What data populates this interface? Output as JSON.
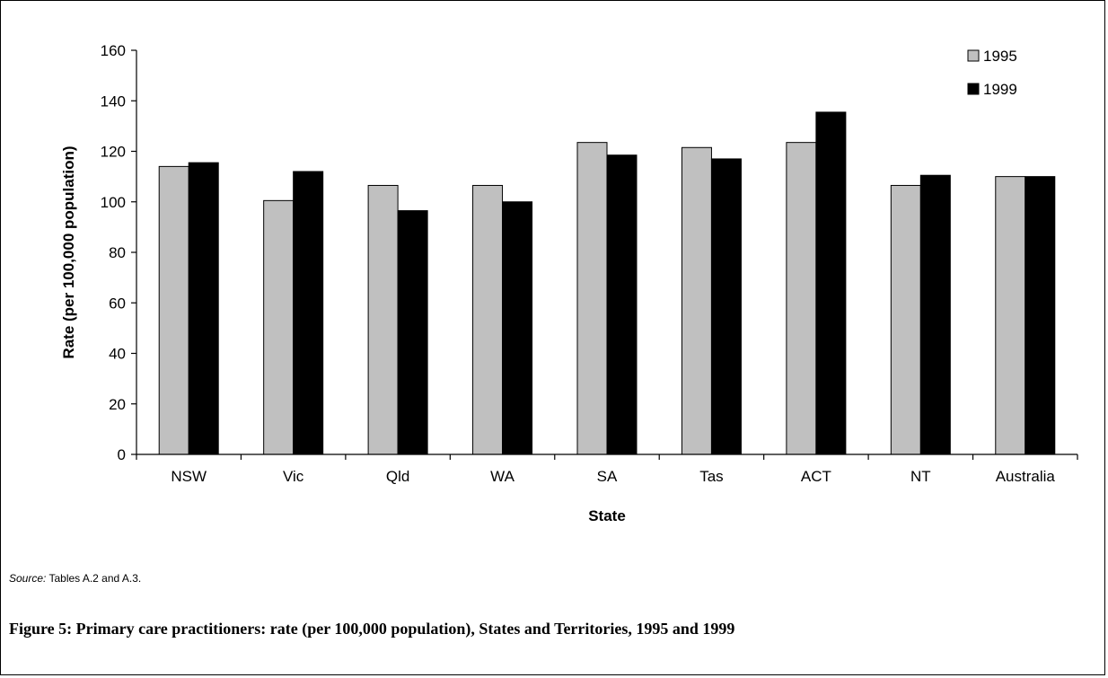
{
  "chart_data": {
    "type": "bar",
    "categories": [
      "NSW",
      "Vic",
      "Qld",
      "WA",
      "SA",
      "Tas",
      "ACT",
      "NT",
      "Australia"
    ],
    "series": [
      {
        "name": "1995",
        "color": "#c0c0c0",
        "values": [
          114,
          100.5,
          106.5,
          106.5,
          123.5,
          121.5,
          123.5,
          106.5,
          110
        ]
      },
      {
        "name": "1999",
        "color": "#000000",
        "values": [
          115.5,
          112,
          96.5,
          100,
          118.5,
          117,
          135.5,
          110.5,
          110
        ]
      }
    ],
    "title": "",
    "xlabel": "State",
    "ylabel": "Rate (per 100,000 population)",
    "ylim": [
      0,
      160
    ],
    "yticks": [
      0,
      20,
      40,
      60,
      80,
      100,
      120,
      140,
      160
    ],
    "grid": false,
    "legend_position": "top-right"
  },
  "source_label": "Source:",
  "source_text": " Tables A.2 and A.3.",
  "caption": "Figure 5: Primary care practitioners: rate (per 100,000 population), States and Territories, 1995 and 1999"
}
